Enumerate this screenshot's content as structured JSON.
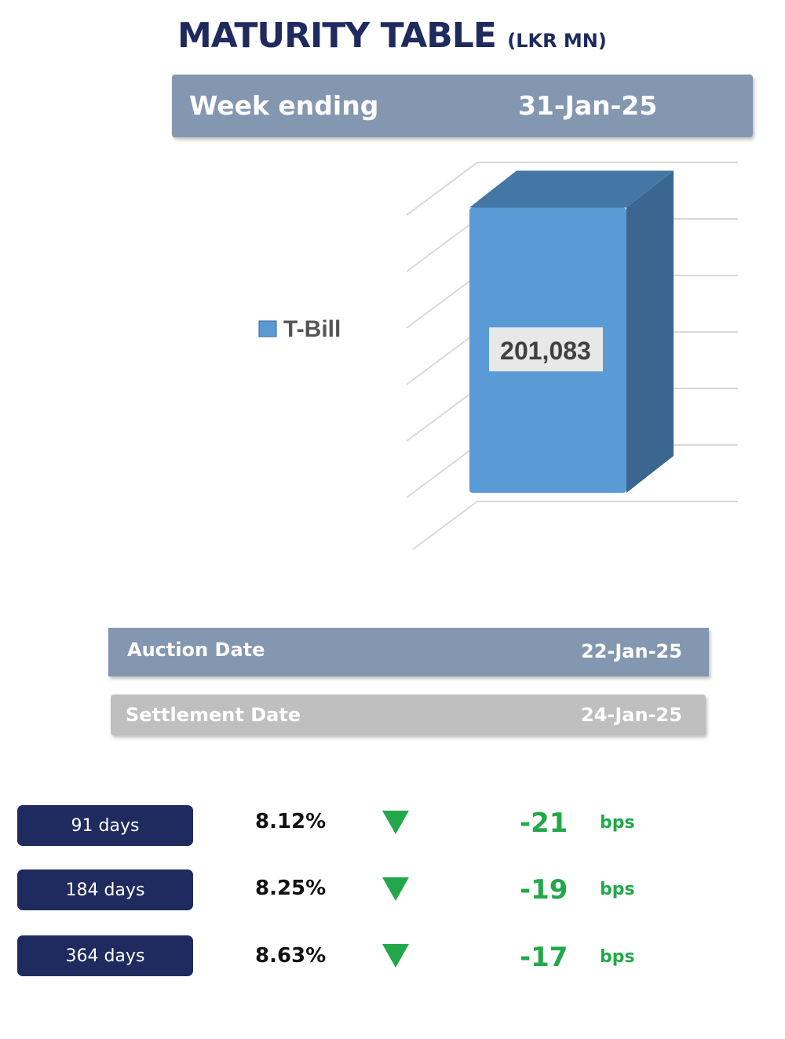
{
  "header": {
    "title": "MATURITY TABLE",
    "unit": "(LKR MN)",
    "week_label": "Week ending",
    "week_value": "31-Jan-25"
  },
  "chart_data": {
    "type": "bar",
    "three_d": true,
    "categories": [
      "T-Bill"
    ],
    "series": [
      {
        "name": "T-Bill",
        "values": [
          201083
        ],
        "color": "#5b9bd5"
      }
    ],
    "data_labels": [
      "201,083"
    ],
    "legend_position": "left",
    "grid": true
  },
  "auction": {
    "label": "Auction Date",
    "value": "22-Jan-25"
  },
  "settlement": {
    "label": "Settlement Date",
    "value": "24-Jan-25"
  },
  "yields": [
    {
      "tenor": "91 days",
      "rate": "8.12%",
      "direction": "down",
      "change": "-21",
      "unit": "bps"
    },
    {
      "tenor": "184 days",
      "rate": "8.25%",
      "direction": "down",
      "change": "-19",
      "unit": "bps"
    },
    {
      "tenor": "364 days",
      "rate": "8.63%",
      "direction": "down",
      "change": "-17",
      "unit": "bps"
    }
  ],
  "colors": {
    "title": "#1f2a5e",
    "header_bar": "#8497b0",
    "settlement_bar": "#bfbfbf",
    "pill": "#1f2a5e",
    "down": "#22a84a",
    "bar_front": "#5b9bd5",
    "bar_top": "#4477a6",
    "bar_side": "#3a6690"
  }
}
